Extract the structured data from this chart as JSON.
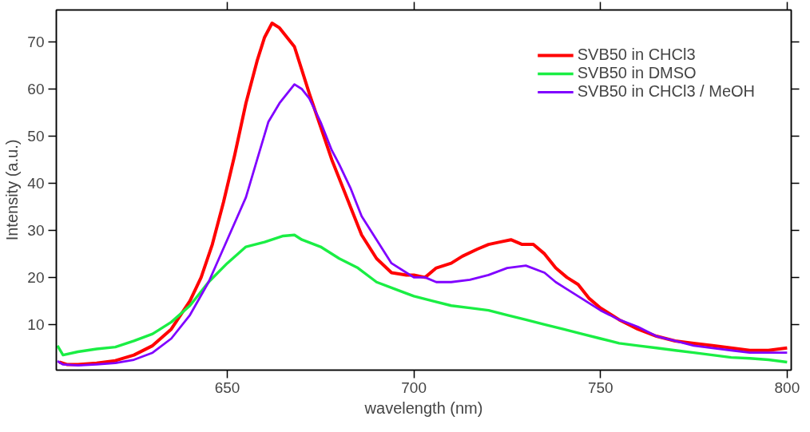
{
  "chart_data": {
    "type": "line",
    "xlabel": "wavelength (nm)",
    "ylabel": "Intensity (a.u.)",
    "xlim": [
      604.2,
      801.1
    ],
    "ylim": [
      0.3,
      76.8
    ],
    "xticks": [
      650,
      700,
      750,
      800
    ],
    "yticks": [
      10,
      20,
      30,
      40,
      50,
      60,
      70
    ],
    "grid": false,
    "legend": "top right",
    "marker": "none",
    "line_style": "solid",
    "series": [
      {
        "name": "SVB50 in CHCl3",
        "color": "#ff0000",
        "x": [
          605,
          607,
          610,
          615,
          620,
          625,
          630,
          635,
          640,
          643,
          646,
          649,
          652,
          655,
          658,
          660,
          662,
          664,
          666,
          668,
          670,
          672,
          675,
          678,
          680,
          683,
          686,
          690,
          694,
          698,
          700,
          703,
          706,
          710,
          713,
          717,
          720,
          723,
          726,
          729,
          732,
          735,
          738,
          741,
          744,
          747,
          750,
          755,
          760,
          765,
          770,
          775,
          780,
          785,
          790,
          795,
          800
        ],
        "values": [
          2.0,
          1.5,
          1.5,
          1.8,
          2.3,
          3.5,
          5.5,
          9,
          15,
          20,
          27,
          36,
          46,
          57,
          66,
          71,
          74,
          73,
          71,
          69,
          64,
          59,
          52,
          45,
          41,
          35,
          29,
          24,
          21,
          20.5,
          20.5,
          20,
          22,
          23,
          24.5,
          26,
          27,
          27.5,
          28,
          27,
          27,
          25,
          22,
          20,
          18.5,
          15.5,
          13.5,
          11,
          9,
          7.5,
          6.5,
          6,
          5.5,
          5,
          4.5,
          4.5,
          5
        ]
      },
      {
        "name": "SVB50 in DMSO",
        "color": "#1aee44",
        "x": [
          604.5,
          606,
          610,
          615,
          620,
          625,
          630,
          635,
          640,
          645,
          650,
          655,
          660,
          665,
          668,
          670,
          675,
          680,
          685,
          690,
          695,
          700,
          705,
          710,
          715,
          720,
          725,
          730,
          735,
          740,
          745,
          750,
          755,
          760,
          765,
          770,
          775,
          780,
          785,
          790,
          795,
          800
        ],
        "values": [
          5.5,
          3.5,
          4.2,
          4.8,
          5.2,
          6.5,
          8,
          10.5,
          14,
          19,
          23,
          26.5,
          27.5,
          28.8,
          29,
          28,
          26.5,
          24,
          22,
          19,
          17.5,
          16,
          15,
          14,
          13.5,
          13,
          12,
          11,
          10,
          9,
          8,
          7,
          6,
          5.5,
          5,
          4.5,
          4,
          3.5,
          3,
          2.8,
          2.5,
          2
        ]
      },
      {
        "name": "SVB50 in CHCl3 / MeOH",
        "color": "#8000ff",
        "x": [
          604.5,
          606,
          610,
          615,
          620,
          625,
          630,
          635,
          640,
          645,
          650,
          655,
          658,
          661,
          664,
          666,
          668,
          670,
          672,
          675,
          678,
          680,
          683,
          686,
          690,
          694,
          698,
          700,
          703,
          706,
          710,
          715,
          720,
          725,
          730,
          735,
          738,
          741,
          745,
          750,
          755,
          760,
          765,
          770,
          775,
          780,
          785,
          790,
          795,
          800
        ],
        "values": [
          2.2,
          1.5,
          1.3,
          1.5,
          1.8,
          2.5,
          4,
          7,
          12,
          19,
          28,
          37,
          45,
          53,
          57,
          59,
          61,
          60,
          58,
          53,
          47,
          44,
          39,
          33,
          28,
          23,
          21,
          20,
          20,
          19,
          19,
          19.5,
          20.5,
          22,
          22.5,
          21,
          19,
          17.5,
          15.5,
          13,
          11,
          9.5,
          7.5,
          6.5,
          5.5,
          5,
          4.5,
          4,
          4,
          4
        ]
      }
    ]
  }
}
